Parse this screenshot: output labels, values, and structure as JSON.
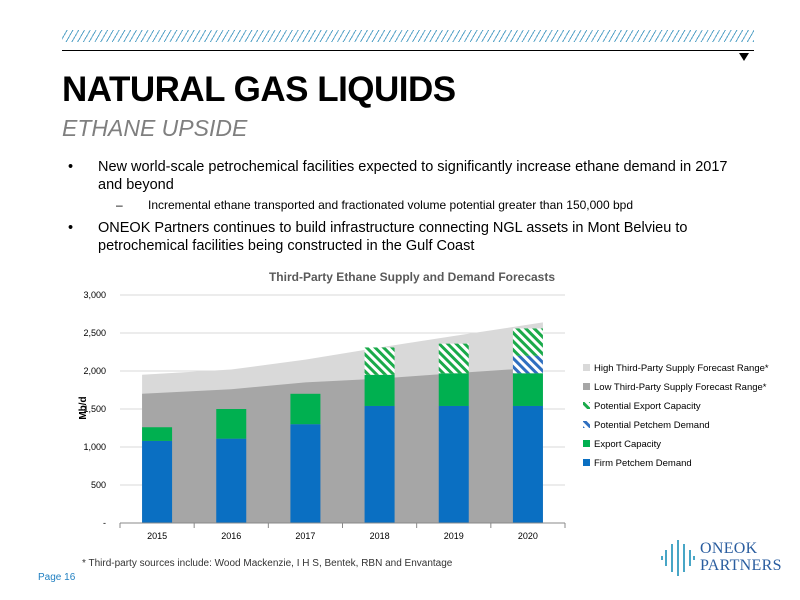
{
  "header": {
    "title": "NATURAL GAS LIQUIDS",
    "subtitle": "ETHANE UPSIDE"
  },
  "bullets": [
    {
      "text": "New world-scale petrochemical facilities expected to significantly increase ethane demand in 2017 and beyond",
      "sub": [
        "Incremental ethane transported and fractionated volume potential greater than 150,000 bpd"
      ]
    },
    {
      "text": "ONEOK Partners continues to build infrastructure connecting NGL assets in Mont Belvieu to petrochemical facilities being constructed in the Gulf Coast",
      "sub": []
    }
  ],
  "footer": {
    "footnote": "* Third-party sources include: Wood Mackenzie, I H S, Bentek, RBN and Envantage",
    "page": "Page 16",
    "logo_line1": "ONEOK",
    "logo_line2": "PARTNERS"
  },
  "colors": {
    "firm_petchem": "#0a6fc2",
    "export_capacity": "#00b050",
    "potential_petchem": "#2f6fc0",
    "potential_export": "#1aaa4a",
    "low_supply": "#a6a6a6",
    "high_supply": "#d9d9d9",
    "accent": "#5aa5c8"
  },
  "chart_data": {
    "type": "bar",
    "title": "Third-Party Ethane Supply and Demand Forecasts",
    "ylabel": "Mb/d",
    "xlabel": "",
    "categories": [
      "2015",
      "2016",
      "2017",
      "2018",
      "2019",
      "2020"
    ],
    "ylim": [
      0,
      3000
    ],
    "yticks": [
      0,
      500,
      1000,
      1500,
      2000,
      2500,
      3000
    ],
    "ytick_labels": [
      "-",
      "500",
      "1,000",
      "1,500",
      "2,000",
      "2,500",
      "3,000"
    ],
    "stacked": true,
    "series": [
      {
        "name": "Firm Petchem Demand",
        "values": [
          1080,
          1110,
          1300,
          1540,
          1540,
          1540
        ],
        "style": "solid"
      },
      {
        "name": "Export Capacity",
        "values": [
          180,
          390,
          400,
          410,
          430,
          430
        ],
        "style": "solid"
      },
      {
        "name": "Potential Petchem Demand",
        "values": [
          0,
          0,
          0,
          0,
          0,
          230
        ],
        "style": "hatch"
      },
      {
        "name": "Potential Export Capacity",
        "values": [
          0,
          0,
          0,
          360,
          390,
          360
        ],
        "style": "hatch"
      }
    ],
    "area_series": [
      {
        "name": "Low Third-Party Supply Forecast Range*",
        "values": [
          1700,
          1760,
          1850,
          1900,
          1970,
          2050
        ]
      },
      {
        "name": "High Third-Party Supply Forecast Range*",
        "values": [
          1950,
          2020,
          2150,
          2310,
          2460,
          2640
        ]
      }
    ],
    "legend": [
      {
        "name": "High Third-Party Supply Forecast Range*",
        "swatch": "high_supply"
      },
      {
        "name": "Low Third-Party Supply Forecast Range*",
        "swatch": "low_supply"
      },
      {
        "name": "Potential Export Capacity",
        "swatch": "potential_export"
      },
      {
        "name": "Potential Petchem Demand",
        "swatch": "potential_petchem"
      },
      {
        "name": "Export Capacity",
        "swatch": "export_capacity"
      },
      {
        "name": "Firm Petchem Demand",
        "swatch": "firm_petchem"
      }
    ],
    "legend_position": "right",
    "grid": true
  }
}
